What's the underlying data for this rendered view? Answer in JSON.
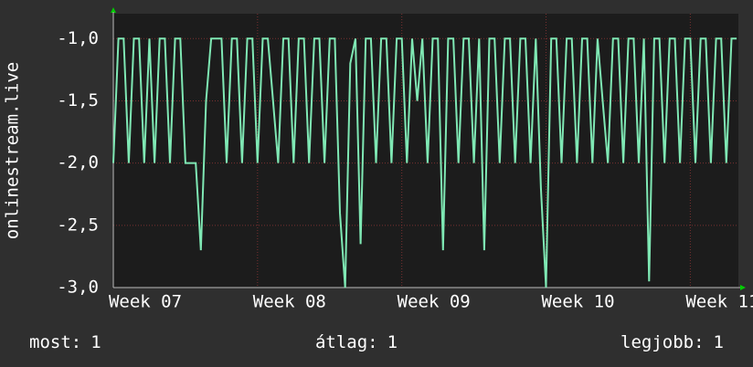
{
  "chart_data": {
    "type": "line",
    "y_label": "onlinestream.live",
    "x": [
      0,
      6,
      12,
      18,
      24,
      30,
      36,
      42,
      48,
      54,
      60,
      66,
      72,
      78,
      84,
      90,
      96,
      102,
      108,
      114,
      120,
      126,
      132,
      138,
      144,
      150,
      156,
      162,
      168,
      174,
      180,
      186,
      192,
      198,
      204,
      210,
      216,
      222,
      228,
      234,
      240,
      246,
      252,
      258,
      264,
      270,
      276,
      282,
      288,
      294,
      300,
      306,
      312,
      318,
      324,
      330,
      336,
      342,
      348,
      354,
      360,
      366,
      372,
      378,
      384,
      390,
      396,
      402,
      408,
      414,
      420,
      426,
      432,
      438,
      444,
      450,
      456,
      462,
      468,
      474,
      480,
      486,
      492,
      498,
      504,
      510,
      516,
      522,
      528,
      534,
      540,
      546,
      552,
      558,
      564,
      570,
      576,
      582,
      588,
      594,
      600,
      606,
      612,
      618,
      624,
      630,
      636,
      642,
      648,
      654,
      660,
      666,
      672,
      678,
      684,
      690,
      696,
      702,
      708,
      714,
      720,
      726
    ],
    "series": [
      {
        "name": "onlinestream.live",
        "color": "#7fe8b4",
        "values": [
          -2,
          -1,
          -1,
          -2,
          -1,
          -1,
          -2,
          -1,
          -2,
          -1,
          -1,
          -2,
          -1,
          -1,
          -2,
          -2,
          -2,
          -2.7,
          -1.5,
          -1,
          -1,
          -1,
          -2,
          -1,
          -1,
          -2,
          -1,
          -1,
          -2,
          -1,
          -1,
          -1.5,
          -2,
          -1,
          -1,
          -2,
          -1,
          -1,
          -2,
          -1,
          -1,
          -2,
          -1,
          -1,
          -2.4,
          -3,
          -1.2,
          -1,
          -2.65,
          -1,
          -1,
          -2,
          -1,
          -1,
          -2,
          -1,
          -1,
          -2,
          -1,
          -1.5,
          -1,
          -2,
          -1,
          -1,
          -2.7,
          -1,
          -1,
          -2,
          -1,
          -1,
          -2,
          -1,
          -2.7,
          -1,
          -1,
          -2,
          -1,
          -1,
          -2,
          -1,
          -1,
          -2,
          -1,
          -2.2,
          -3,
          -1,
          -1,
          -2,
          -1,
          -1,
          -2,
          -1,
          -1,
          -2,
          -1,
          -1.5,
          -2,
          -1,
          -1,
          -2,
          -1,
          -1,
          -2,
          -1,
          -2.95,
          -1,
          -1,
          -2,
          -1,
          -1,
          -2,
          -1,
          -1,
          -2,
          -1,
          -1,
          -2,
          -1,
          -1,
          -2,
          -1,
          -1
        ]
      }
    ],
    "xlim": [
      0,
      728
    ],
    "xticks": [
      {
        "value": 0,
        "label": "Week 07"
      },
      {
        "value": 168,
        "label": "Week 08"
      },
      {
        "value": 336,
        "label": "Week 09"
      },
      {
        "value": 504,
        "label": "Week 10"
      },
      {
        "value": 672,
        "label": "Week 11"
      }
    ],
    "ylim": [
      -3,
      -0.8
    ],
    "yticks": [
      {
        "value": -3,
        "label": "-3,0"
      },
      {
        "value": -2.5,
        "label": "-2,5"
      },
      {
        "value": -2,
        "label": "-2,0"
      },
      {
        "value": -1.5,
        "label": "-1,5"
      },
      {
        "value": -1,
        "label": "-1,0"
      }
    ],
    "grid": true,
    "footer": [
      {
        "label": "most:",
        "value": "1"
      },
      {
        "label": "átlag:",
        "value": "1"
      },
      {
        "label": "legjobb:",
        "value": "1"
      }
    ]
  }
}
